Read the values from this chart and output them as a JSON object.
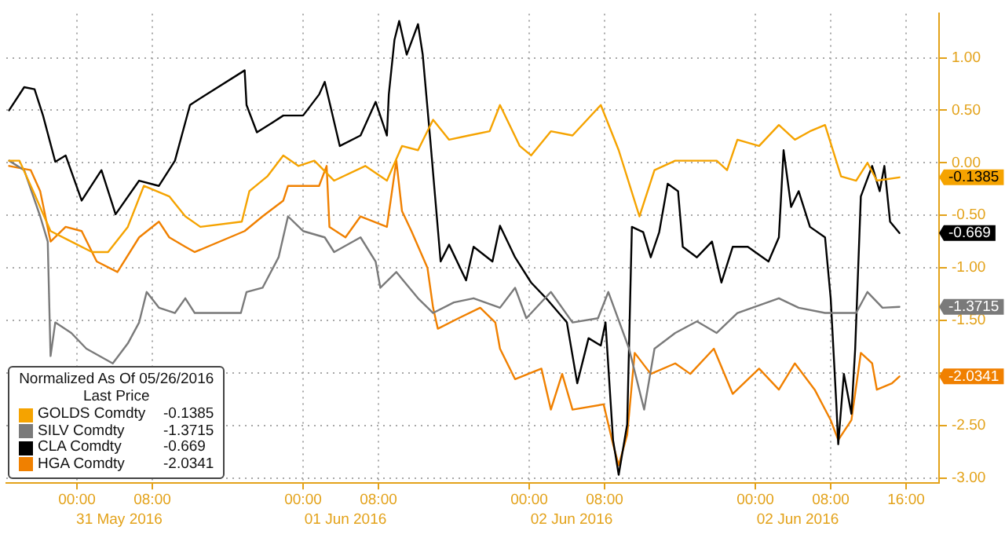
{
  "chart_data": {
    "type": "line",
    "legend_title": "Normalized As Of 05/26/2016\nLast Price",
    "legend": "bottom left",
    "grid": true,
    "line_style": "solid",
    "marker": "none",
    "xlim": [
      "2016-05-30T16:30",
      "2016-06-03T19:30"
    ],
    "xticks": [
      {
        "value": "2016-05-31T00:00",
        "label": "00:00"
      },
      {
        "value": "2016-05-31T08:00",
        "label": "08:00"
      },
      {
        "value": "2016-06-01T00:00",
        "label": "00:00"
      },
      {
        "value": "2016-06-01T08:00",
        "label": "08:00"
      },
      {
        "value": "2016-06-02T00:00",
        "label": "00:00"
      },
      {
        "value": "2016-06-02T08:00",
        "label": "08:00"
      },
      {
        "value": "2016-06-03T00:00",
        "label": "00:00"
      },
      {
        "value": "2016-06-03T08:00",
        "label": "08:00"
      },
      {
        "value": "2016-06-03T16:00",
        "label": "16:00"
      }
    ],
    "ylim": [
      -3.05,
      1.42
    ],
    "yticks": [
      {
        "value": 1,
        "label": "1.00"
      },
      {
        "value": 0.5,
        "label": "0.50"
      },
      {
        "value": 0,
        "label": "0.00"
      },
      {
        "value": -0.5,
        "label": "-0.50"
      },
      {
        "value": -1,
        "label": "-1.00"
      },
      {
        "value": -1.5,
        "label": "-1.50"
      },
      {
        "value": -2,
        "label": null
      },
      {
        "value": -2.5,
        "label": "-2.50"
      },
      {
        "value": -3,
        "label": "-3.00"
      }
    ],
    "annotations": [
      "-0.1385",
      "-1.3715",
      "-0.669",
      "-2.0341",
      "31 May 2016",
      "01 Jun 2016",
      "02 Jun 2016",
      "02 Jun 2016"
    ],
    "series": [
      {
        "name": "GOLDS Comdty",
        "color": "#f5a300",
        "x": [
          "2016-05-30T16:48",
          "2016-05-30T17:54",
          "2016-05-30T19:36",
          "2016-05-30T21:12",
          "2016-05-30T23:24",
          "2016-05-31T01:36",
          "2016-05-31T03:18",
          "2016-05-31T05:24",
          "2016-05-31T07:06",
          "2016-05-31T09:48",
          "2016-05-31T11:30",
          "2016-05-31T13:06",
          "2016-05-31T17:30",
          "2016-05-31T18:18",
          "2016-05-31T20:12",
          "2016-05-31T21:54",
          "2016-05-31T23:30",
          "2016-06-01T01:12",
          "2016-06-01T03:18",
          "2016-06-01T06:36",
          "2016-06-01T08:54",
          "2016-06-01T10:30",
          "2016-06-01T12:12",
          "2016-06-01T13:48",
          "2016-06-01T15:30",
          "2016-06-01T17:36",
          "2016-06-01T19:48",
          "2016-06-01T20:54",
          "2016-06-01T23:00",
          "2016-06-02T00:12",
          "2016-06-02T02:18",
          "2016-06-02T04:36",
          "2016-06-02T07:36",
          "2016-06-02T09:30",
          "2016-06-02T11:42",
          "2016-06-02T13:18",
          "2016-06-02T15:30",
          "2016-06-02T17:48",
          "2016-06-02T19:54",
          "2016-06-02T21:00",
          "2016-06-02T22:06",
          "2016-06-03T00:24",
          "2016-06-03T02:30",
          "2016-06-03T04:12",
          "2016-06-03T05:48",
          "2016-06-03T07:24",
          "2016-06-03T09:06",
          "2016-06-03T10:42",
          "2016-06-03T11:54",
          "2016-06-03T12:54",
          "2016-06-03T15:18"
        ],
        "values": [
          0.02,
          0.02,
          -0.32,
          -0.65,
          -0.75,
          -0.85,
          -0.85,
          -0.61,
          -0.22,
          -0.32,
          -0.51,
          -0.61,
          -0.56,
          -0.27,
          -0.13,
          0.07,
          -0.03,
          0.02,
          -0.17,
          -0.03,
          -0.17,
          0.16,
          0.12,
          0.41,
          0.22,
          0.26,
          0.3,
          0.55,
          0.16,
          0.07,
          0.3,
          0.26,
          0.55,
          0.12,
          -0.51,
          -0.07,
          0.02,
          0.02,
          0.02,
          -0.07,
          0.22,
          0.16,
          0.36,
          0.22,
          0.3,
          0.36,
          -0.13,
          -0.17,
          0,
          -0.17,
          -0.1385
        ]
      },
      {
        "name": "SILV Comdty",
        "color": "#7a7a7a",
        "x": [
          "2016-05-30T16:48",
          "2016-05-30T18:24",
          "2016-05-30T20:06",
          "2016-05-30T20:54",
          "2016-05-30T21:06",
          "2016-05-30T21:12",
          "2016-05-30T21:42",
          "2016-05-30T23:24",
          "2016-05-31T01:00",
          "2016-05-31T03:48",
          "2016-05-31T05:24",
          "2016-05-31T06:36",
          "2016-05-31T07:24",
          "2016-05-31T08:42",
          "2016-05-31T10:24",
          "2016-05-31T11:30",
          "2016-05-31T12:30",
          "2016-05-31T17:24",
          "2016-05-31T18:00",
          "2016-05-31T19:42",
          "2016-05-31T21:24",
          "2016-05-31T22:24",
          "2016-06-01T00:00",
          "2016-06-01T02:18",
          "2016-06-01T03:18",
          "2016-06-01T06:06",
          "2016-06-01T07:42",
          "2016-06-01T08:12",
          "2016-06-01T09:54",
          "2016-06-01T12:12",
          "2016-06-01T13:48",
          "2016-06-01T16:00",
          "2016-06-01T18:06",
          "2016-06-01T20:54",
          "2016-06-01T22:30",
          "2016-06-01T23:42",
          "2016-06-02T02:18",
          "2016-06-02T04:36",
          "2016-06-02T07:18",
          "2016-06-02T08:24",
          "2016-06-02T10:36",
          "2016-06-02T12:12",
          "2016-06-02T13:18",
          "2016-06-02T15:30",
          "2016-06-02T17:48",
          "2016-06-02T19:54",
          "2016-06-02T22:06",
          "2016-06-03T02:30",
          "2016-06-03T04:36",
          "2016-06-03T07:24",
          "2016-06-03T10:42",
          "2016-06-03T11:54",
          "2016-06-03T13:30",
          "2016-06-03T15:18"
        ],
        "values": [
          0.02,
          -0.07,
          -0.51,
          -0.75,
          -1.48,
          -1.84,
          -1.52,
          -1.62,
          -1.77,
          -1.91,
          -1.72,
          -1.52,
          -1.23,
          -1.38,
          -1.43,
          -1.29,
          -1.43,
          -1.43,
          -1.23,
          -1.19,
          -0.9,
          -0.51,
          -0.65,
          -0.71,
          -0.85,
          -0.71,
          -0.94,
          -1.19,
          -1.04,
          -1.29,
          -1.43,
          -1.33,
          -1.29,
          -1.38,
          -1.19,
          -1.48,
          -1.23,
          -1.52,
          -1.48,
          -1.23,
          -1.77,
          -2.35,
          -1.77,
          -1.62,
          -1.51,
          -1.62,
          -1.43,
          -1.29,
          -1.38,
          -1.43,
          -1.43,
          -1.23,
          -1.38,
          -1.3715
        ]
      },
      {
        "name": "CLA Comdty",
        "color": "#000000",
        "x": [
          "2016-05-30T16:48",
          "2016-05-30T18:24",
          "2016-05-30T19:30",
          "2016-05-30T20:24",
          "2016-05-30T21:42",
          "2016-05-30T22:48",
          "2016-05-31T00:30",
          "2016-05-31T02:36",
          "2016-05-31T04:06",
          "2016-05-31T06:36",
          "2016-05-31T08:42",
          "2016-05-31T10:24",
          "2016-05-31T12:00",
          "2016-05-31T12:30",
          "2016-05-31T17:48",
          "2016-05-31T18:00",
          "2016-05-31T19:06",
          "2016-05-31T20:42",
          "2016-05-31T21:54",
          "2016-06-01T00:00",
          "2016-06-01T01:42",
          "2016-06-01T02:18",
          "2016-06-01T03:54",
          "2016-06-01T06:06",
          "2016-06-01T07:42",
          "2016-06-01T08:54",
          "2016-06-01T09:06",
          "2016-06-01T09:42",
          "2016-06-01T10:12",
          "2016-06-01T11:00",
          "2016-06-01T12:12",
          "2016-06-01T12:42",
          "2016-06-01T13:30",
          "2016-06-01T14:36",
          "2016-06-01T15:30",
          "2016-06-01T17:18",
          "2016-06-01T18:06",
          "2016-06-01T20:06",
          "2016-06-01T20:54",
          "2016-06-01T22:30",
          "2016-06-02T00:12",
          "2016-06-02T01:48",
          "2016-06-02T04:00",
          "2016-06-02T05:06",
          "2016-06-02T06:18",
          "2016-06-02T07:36",
          "2016-06-02T08:06",
          "2016-06-02T08:54",
          "2016-06-02T09:30",
          "2016-06-02T10:24",
          "2016-06-02T10:54",
          "2016-06-02T12:06",
          "2016-06-02T12:54",
          "2016-06-02T13:48",
          "2016-06-02T14:42",
          "2016-06-02T15:48",
          "2016-06-02T16:18",
          "2016-06-02T17:48",
          "2016-06-02T19:24",
          "2016-06-02T20:24",
          "2016-06-02T21:36",
          "2016-06-02T23:12",
          "2016-06-03T01:24",
          "2016-06-03T02:30",
          "2016-06-03T03:00",
          "2016-06-03T03:48",
          "2016-06-03T04:36",
          "2016-06-03T05:48",
          "2016-06-03T07:24",
          "2016-06-03T08:00",
          "2016-06-03T08:36",
          "2016-06-03T08:48",
          "2016-06-03T09:24",
          "2016-06-03T10:12",
          "2016-06-03T10:36",
          "2016-06-03T11:12",
          "2016-06-03T12:24",
          "2016-06-03T13:12",
          "2016-06-03T13:42",
          "2016-06-03T14:18",
          "2016-06-03T15:18"
        ],
        "values": [
          0.5,
          0.72,
          0.7,
          0.45,
          0.01,
          0.07,
          -0.36,
          -0.07,
          -0.49,
          -0.17,
          -0.22,
          0.02,
          0.55,
          0.58,
          0.88,
          0.55,
          0.29,
          0.38,
          0.45,
          0.45,
          0.65,
          0.77,
          0.16,
          0.26,
          0.58,
          0.26,
          0.65,
          1.17,
          1.35,
          1.03,
          1.32,
          1.03,
          0.22,
          -0.94,
          -0.78,
          -1.12,
          -0.8,
          -0.94,
          -0.6,
          -0.9,
          -1.14,
          -1.29,
          -1.52,
          -2.1,
          -1.67,
          -1.74,
          -1.52,
          -2.64,
          -2.97,
          -2.49,
          -0.61,
          -0.66,
          -0.9,
          -0.66,
          -0.2,
          -0.27,
          -0.8,
          -0.9,
          -0.75,
          -1.14,
          -0.8,
          -0.8,
          -0.94,
          -0.71,
          0.12,
          -0.42,
          -0.27,
          -0.61,
          -0.71,
          -1.29,
          -2.3,
          -2.68,
          -2.01,
          -2.39,
          -1.77,
          -0.32,
          -0.03,
          -0.27,
          -0.03,
          -0.56,
          -0.669
        ]
      },
      {
        "name": "HGA Comdty",
        "color": "#f08000",
        "x": [
          "2016-05-30T16:48",
          "2016-05-30T19:06",
          "2016-05-30T20:06",
          "2016-05-30T21:12",
          "2016-05-30T22:48",
          "2016-05-31T00:30",
          "2016-05-31T02:06",
          "2016-05-31T04:18",
          "2016-05-31T06:36",
          "2016-05-31T08:42",
          "2016-05-31T09:48",
          "2016-05-31T11:30",
          "2016-05-31T12:30",
          "2016-05-31T17:48",
          "2016-05-31T19:42",
          "2016-05-31T21:54",
          "2016-05-31T22:24",
          "2016-06-01T01:42",
          "2016-06-01T02:30",
          "2016-06-01T02:48",
          "2016-06-01T04:30",
          "2016-06-01T06:06",
          "2016-06-01T08:54",
          "2016-06-01T09:54",
          "2016-06-01T10:30",
          "2016-06-01T11:30",
          "2016-06-01T13:12",
          "2016-06-01T13:48",
          "2016-06-01T14:18",
          "2016-06-01T16:30",
          "2016-06-01T18:48",
          "2016-06-01T20:24",
          "2016-06-01T20:54",
          "2016-06-01T22:30",
          "2016-06-02T01:18",
          "2016-06-02T02:18",
          "2016-06-02T03:30",
          "2016-06-02T04:36",
          "2016-06-02T07:54",
          "2016-06-02T08:54",
          "2016-06-02T09:30",
          "2016-06-02T10:24",
          "2016-06-02T11:12",
          "2016-06-02T12:54",
          "2016-06-02T15:30",
          "2016-06-02T17:06",
          "2016-06-02T19:36",
          "2016-06-02T21:36",
          "2016-06-03T00:24",
          "2016-06-03T02:30",
          "2016-06-03T04:12",
          "2016-06-03T06:18",
          "2016-06-03T08:00",
          "2016-06-03T08:48",
          "2016-06-03T10:12",
          "2016-06-03T11:12",
          "2016-06-03T12:24",
          "2016-06-03T12:54",
          "2016-06-03T14:30",
          "2016-06-03T15:18"
        ],
        "values": [
          -0.03,
          -0.07,
          -0.27,
          -0.75,
          -0.61,
          -0.65,
          -0.94,
          -1.04,
          -0.71,
          -0.56,
          -0.71,
          -0.8,
          -0.85,
          -0.65,
          -0.51,
          -0.36,
          -0.22,
          -0.22,
          -0.03,
          -0.61,
          -0.71,
          -0.51,
          -0.61,
          0.02,
          -0.46,
          -0.65,
          -1,
          -1.38,
          -1.58,
          -1.48,
          -1.38,
          -1.52,
          -1.77,
          -2.06,
          -1.96,
          -2.35,
          -2.01,
          -2.35,
          -2.3,
          -2.68,
          -2.88,
          -2.59,
          -1.81,
          -2.01,
          -1.91,
          -2.01,
          -1.77,
          -2.2,
          -1.96,
          -2.16,
          -1.91,
          -2.16,
          -2.45,
          -2.64,
          -2.45,
          -1.81,
          -1.91,
          -2.16,
          -2.1,
          -2.0341
        ]
      }
    ]
  }
}
